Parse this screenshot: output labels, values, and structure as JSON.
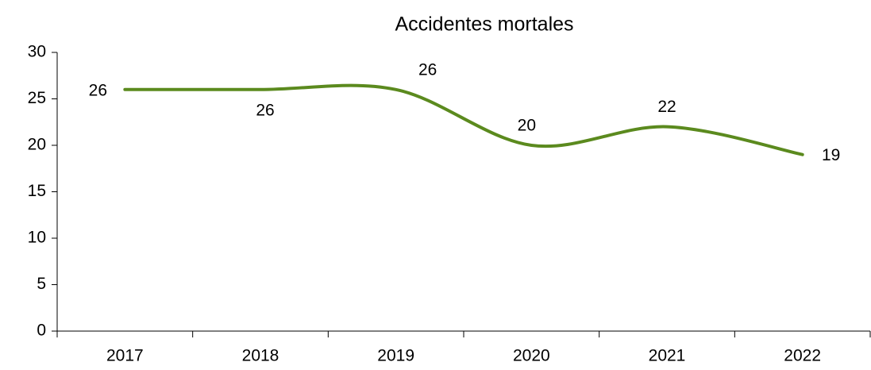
{
  "chart_data": {
    "type": "line",
    "title": "Accidentes mortales",
    "categories": [
      "2017",
      "2018",
      "2019",
      "2020",
      "2021",
      "2022"
    ],
    "values": [
      26,
      26,
      26,
      20,
      22,
      19
    ],
    "color": "#5b8a1e",
    "smooth": true,
    "ylim": [
      0,
      30
    ],
    "yticks": [
      0,
      5,
      10,
      15,
      20,
      25,
      30
    ]
  }
}
